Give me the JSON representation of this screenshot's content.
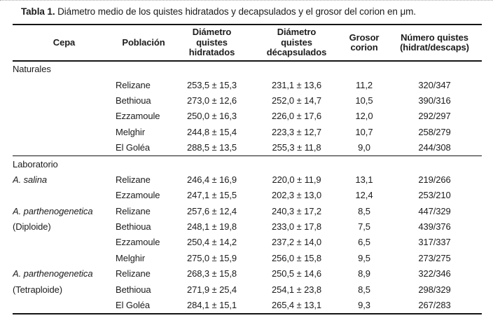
{
  "title": {
    "label": "Tabla 1.",
    "text": " Diámetro medio de los quistes hidratados y decapsulados y el grosor del corion en μm."
  },
  "table": {
    "headers": [
      {
        "id": "cepa",
        "label": "Cepa"
      },
      {
        "id": "poblacion",
        "label": "Población"
      },
      {
        "id": "diam-hidratados",
        "label": "Diámetro\nquistes\nhidratados"
      },
      {
        "id": "diam-decapsulados",
        "label": "Diámetro\nquistes\ndécapsulados"
      },
      {
        "id": "grosor-corion",
        "label": "Grosor\ncorion"
      },
      {
        "id": "numero-quistes",
        "label": "Número quistes\n(hidrat/descaps)"
      }
    ],
    "rows": [
      {
        "cepa": "Naturales",
        "cepa_italic": false,
        "rule_above": false,
        "poblacion": "",
        "diam_hidratados": "",
        "diam_decapsulados": "",
        "grosor_corion": "",
        "numero_quistes": ""
      },
      {
        "cepa": "",
        "cepa_italic": false,
        "rule_above": false,
        "poblacion": "Relizane",
        "diam_hidratados": "253,5 ± 15,3",
        "diam_decapsulados": "231,1 ± 13,6",
        "grosor_corion": "11,2",
        "numero_quistes": "320/347"
      },
      {
        "cepa": "",
        "cepa_italic": false,
        "rule_above": false,
        "poblacion": "Bethioua",
        "diam_hidratados": "273,0 ± 12,6",
        "diam_decapsulados": "252,0 ± 14,7",
        "grosor_corion": "10,5",
        "numero_quistes": "390/316"
      },
      {
        "cepa": "",
        "cepa_italic": false,
        "rule_above": false,
        "poblacion": "Ezzamoule",
        "diam_hidratados": "250,0 ± 16,3",
        "diam_decapsulados": "226,0 ± 17,6",
        "grosor_corion": "12,0",
        "numero_quistes": "292/297"
      },
      {
        "cepa": "",
        "cepa_italic": false,
        "rule_above": false,
        "poblacion": "Melghir",
        "diam_hidratados": "244,8 ± 15,4",
        "diam_decapsulados": "223,3 ± 12,7",
        "grosor_corion": "10,7",
        "numero_quistes": "258/279"
      },
      {
        "cepa": "",
        "cepa_italic": false,
        "rule_above": false,
        "poblacion": "El Goléa",
        "diam_hidratados": "288,5 ± 13,5",
        "diam_decapsulados": "255,3 ± 11,8",
        "grosor_corion": "9,0",
        "numero_quistes": "244/308"
      },
      {
        "cepa": "Laboratorio",
        "cepa_italic": false,
        "rule_above": true,
        "poblacion": "",
        "diam_hidratados": "",
        "diam_decapsulados": "",
        "grosor_corion": "",
        "numero_quistes": ""
      },
      {
        "cepa": "A. salina",
        "cepa_italic": true,
        "rule_above": false,
        "poblacion": "Relizane",
        "diam_hidratados": "246,4 ± 16,9",
        "diam_decapsulados": "220,0 ± 11,9",
        "grosor_corion": "13,1",
        "numero_quistes": "219/266"
      },
      {
        "cepa": "",
        "cepa_italic": false,
        "rule_above": false,
        "poblacion": "Ezzamoule",
        "diam_hidratados": "247,1 ± 15,5",
        "diam_decapsulados": "202,3 ± 13,0",
        "grosor_corion": "12,4",
        "numero_quistes": "253/210"
      },
      {
        "cepa": "A. parthenogenetica",
        "cepa_italic": true,
        "rule_above": false,
        "poblacion": "Relizane",
        "diam_hidratados": "257,6 ± 12,4",
        "diam_decapsulados": "240,3 ± 17,2",
        "grosor_corion": "8,5",
        "numero_quistes": "447/329"
      },
      {
        "cepa": "(Diploide)",
        "cepa_italic": false,
        "rule_above": false,
        "poblacion": "Bethioua",
        "diam_hidratados": "248,1 ± 19,8",
        "diam_decapsulados": "233,0 ± 17,8",
        "grosor_corion": "7,5",
        "numero_quistes": "439/376"
      },
      {
        "cepa": "",
        "cepa_italic": false,
        "rule_above": false,
        "poblacion": "Ezzamoule",
        "diam_hidratados": "250,4 ± 14,2",
        "diam_decapsulados": "237,2 ± 14,0",
        "grosor_corion": "6,5",
        "numero_quistes": "317/337"
      },
      {
        "cepa": "",
        "cepa_italic": false,
        "rule_above": false,
        "poblacion": "Melghir",
        "diam_hidratados": "275,0 ± 15,9",
        "diam_decapsulados": "256,0 ± 15,8",
        "grosor_corion": "9,5",
        "numero_quistes": "273/275"
      },
      {
        "cepa": "A. parthenogenetica",
        "cepa_italic": true,
        "rule_above": false,
        "poblacion": "Relizane",
        "diam_hidratados": "268,3 ± 15,8",
        "diam_decapsulados": "250,5 ± 14,6",
        "grosor_corion": "8,9",
        "numero_quistes": "322/346"
      },
      {
        "cepa": "(Tetraploide)",
        "cepa_italic": false,
        "rule_above": false,
        "poblacion": "Bethioua",
        "diam_hidratados": "271,9 ± 25,4",
        "diam_decapsulados": "254,1 ± 23,8",
        "grosor_corion": "8,5",
        "numero_quistes": "298/329"
      },
      {
        "cepa": "",
        "cepa_italic": false,
        "rule_above": false,
        "poblacion": "El Goléa",
        "diam_hidratados": "284,1 ± 15,1",
        "diam_decapsulados": "265,4 ± 13,1",
        "grosor_corion": "9,3",
        "numero_quistes": "267/283"
      }
    ]
  }
}
